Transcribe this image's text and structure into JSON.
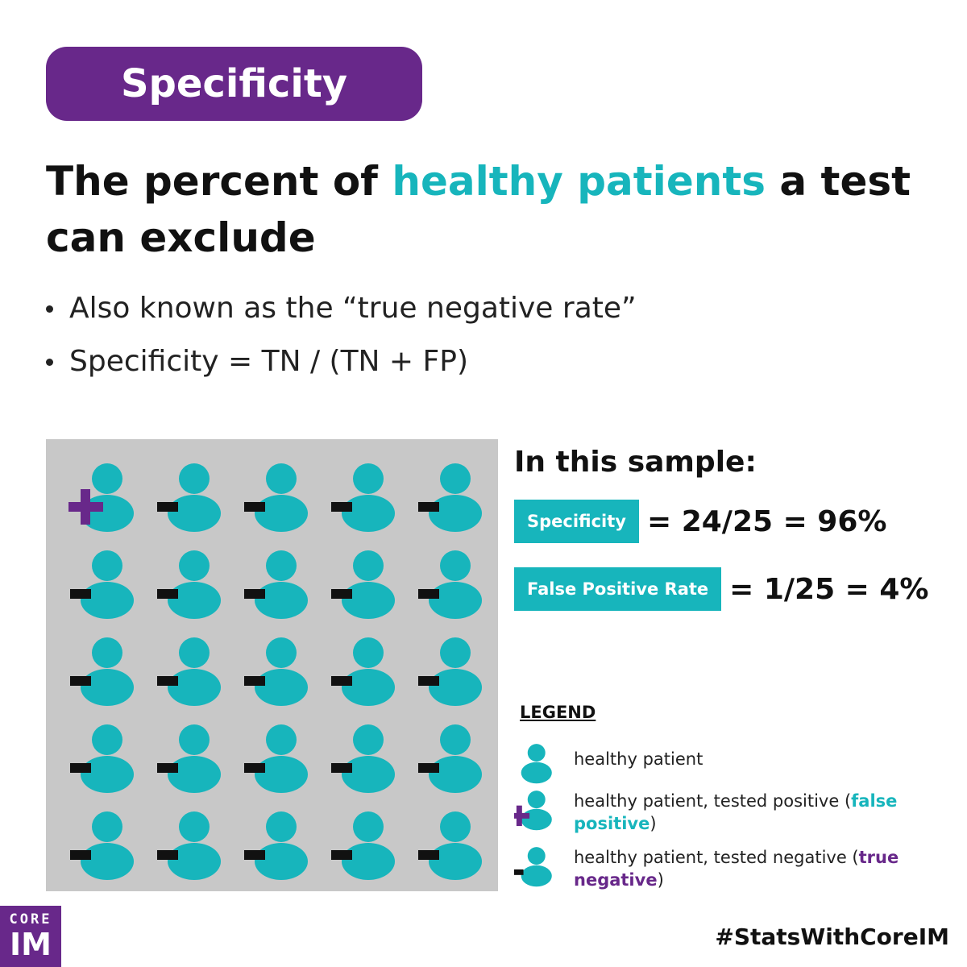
{
  "title": "Specificity",
  "headline": {
    "before": "The percent of ",
    "accent": "healthy patients",
    "after": " a test can exclude"
  },
  "bullets": [
    "Also known as the “true negative rate”",
    "Specificity = TN / (TN + FP)"
  ],
  "sample": {
    "title": "In this sample:",
    "rows": [
      {
        "badge": "Specificity",
        "value": "= 24/25 = 96%"
      },
      {
        "badge": "False Positive Rate",
        "value": "= 1/25 = 4%"
      }
    ]
  },
  "grid": {
    "rows": 5,
    "cols": 5,
    "cells": [
      "positive",
      "negative",
      "negative",
      "negative",
      "negative",
      "negative",
      "negative",
      "negative",
      "negative",
      "negative",
      "negative",
      "negative",
      "negative",
      "negative",
      "negative",
      "negative",
      "negative",
      "negative",
      "negative",
      "negative",
      "negative",
      "negative",
      "negative",
      "negative",
      "negative"
    ]
  },
  "legend": {
    "title": "LEGEND",
    "items": [
      {
        "icon": "healthy-patient-icon",
        "text": "healthy patient"
      },
      {
        "icon": "false-positive-patient-icon",
        "text_before": "healthy patient, tested positive (",
        "highlight": "false positive",
        "text_after": ")"
      },
      {
        "icon": "true-negative-patient-icon",
        "text_before": "healthy patient, tested negative (",
        "highlight": "true negative",
        "text_after": ")"
      }
    ]
  },
  "logo": {
    "line1": "CORE",
    "line2": "IM"
  },
  "hashtag": "#StatsWithCoreIM",
  "colors": {
    "purple": "#68288a",
    "teal": "#17b5bc",
    "panel_gray": "#c8c8c8",
    "black": "#111111"
  }
}
